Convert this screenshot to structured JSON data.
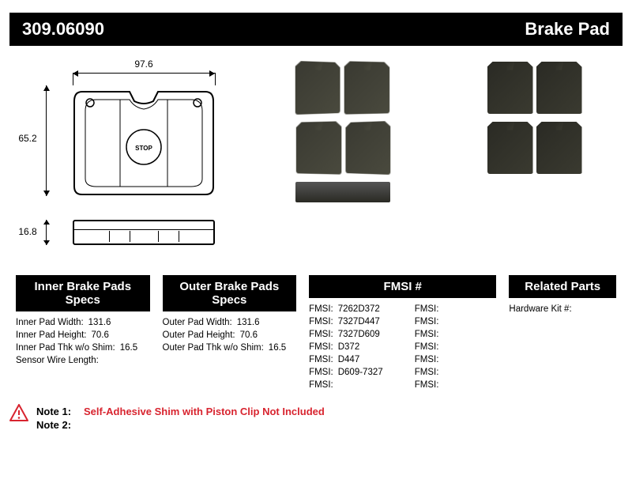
{
  "header": {
    "part_number": "309.06090",
    "title": "Brake Pad"
  },
  "dimensions": {
    "width": "97.6",
    "height": "65.2",
    "thickness": "16.8"
  },
  "specs": {
    "inner": {
      "heading": "Inner Brake Pads Specs",
      "rows": [
        {
          "label": "Inner Pad Width:",
          "value": "131.6"
        },
        {
          "label": "Inner Pad Height:",
          "value": "70.6"
        },
        {
          "label": "Inner Pad Thk w/o Shim:",
          "value": "16.5"
        },
        {
          "label": "Sensor Wire Length:",
          "value": ""
        }
      ]
    },
    "outer": {
      "heading": "Outer Brake Pads Specs",
      "rows": [
        {
          "label": "Outer Pad Width:",
          "value": "131.6"
        },
        {
          "label": "Outer Pad Height:",
          "value": "70.6"
        },
        {
          "label": "Outer Pad Thk w/o Shim:",
          "value": "16.5"
        }
      ]
    },
    "fmsi": {
      "heading": "FMSI #",
      "left": [
        {
          "label": "FMSI:",
          "value": "7262D372"
        },
        {
          "label": "FMSI:",
          "value": "7327D447"
        },
        {
          "label": "FMSI:",
          "value": "7327D609"
        },
        {
          "label": "FMSI:",
          "value": "D372"
        },
        {
          "label": "FMSI:",
          "value": "D447"
        },
        {
          "label": "FMSI:",
          "value": "D609-7327"
        },
        {
          "label": "FMSI:",
          "value": ""
        }
      ],
      "right": [
        {
          "label": "FMSI:",
          "value": ""
        },
        {
          "label": "FMSI:",
          "value": ""
        },
        {
          "label": "FMSI:",
          "value": ""
        },
        {
          "label": "FMSI:",
          "value": ""
        },
        {
          "label": "FMSI:",
          "value": ""
        },
        {
          "label": "FMSI:",
          "value": ""
        },
        {
          "label": "FMSI:",
          "value": ""
        }
      ]
    },
    "related": {
      "heading": "Related Parts",
      "rows": [
        {
          "label": "Hardware Kit #:",
          "value": ""
        }
      ]
    }
  },
  "notes": {
    "note1_label": "Note 1:",
    "note1_value": "Self-Adhesive Shim with Piston Clip Not Included",
    "note2_label": "Note 2:",
    "note2_value": ""
  },
  "colors": {
    "header_bg": "#000000",
    "header_fg": "#ffffff",
    "note_red": "#d8242f"
  }
}
